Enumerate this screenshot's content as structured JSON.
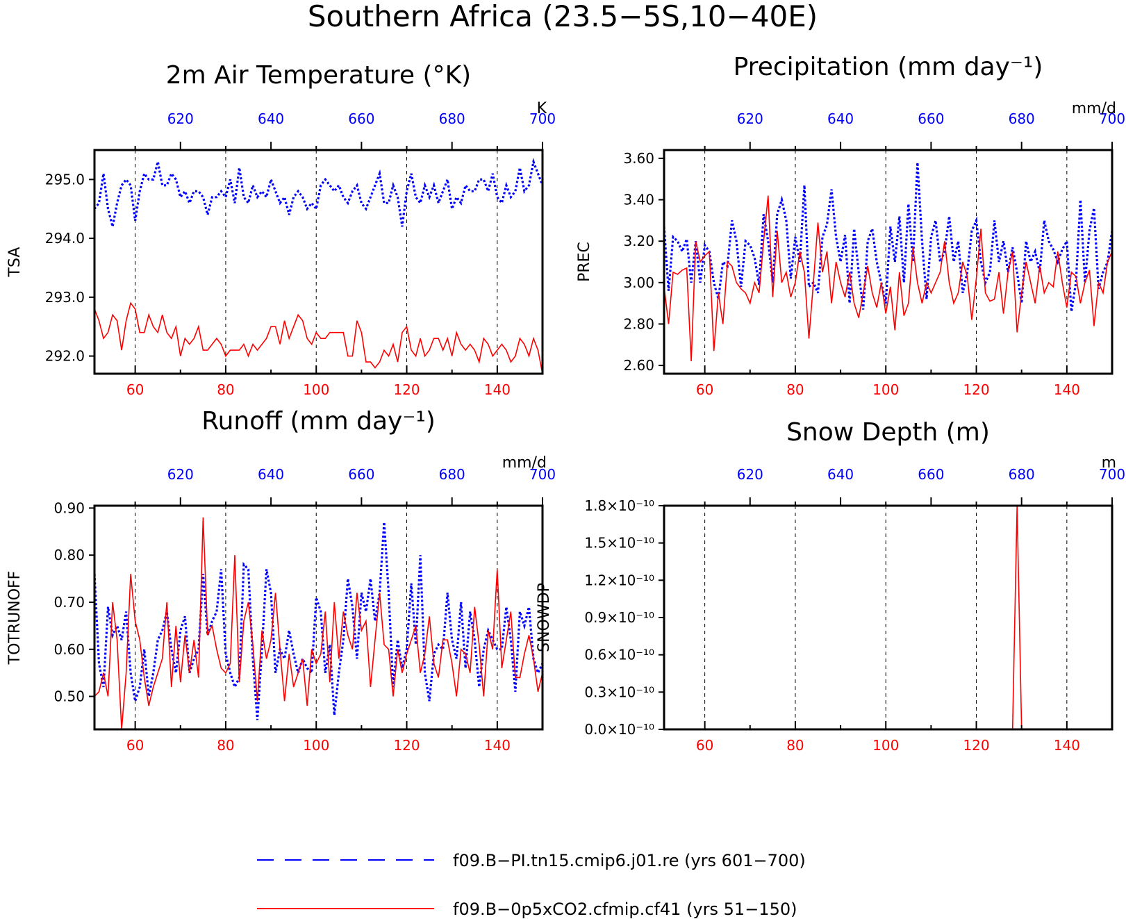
{
  "figure": {
    "title": "Southern Africa (23.5−5S,10−40E)",
    "colors": {
      "control": "#0000ff",
      "experiment": "#ff0000",
      "axis": "#000000"
    }
  },
  "legend": [
    {
      "label": "f09.B−PI.tn15.cmip6.j01.re (yrs 601−700)",
      "color": "#0000ff",
      "style": "dashed"
    },
    {
      "label": "f09.B−0p5xCO2.cfmip.cf41 (yrs 51−150)",
      "color": "#ff0000",
      "style": "solid"
    }
  ],
  "chart_data": [
    {
      "type": "line",
      "title": "2m Air Temperature (°K)",
      "ylabel": "TSA",
      "unit_label": "K",
      "xlim_bottom": [
        51,
        150
      ],
      "xlim_top": [
        601,
        700
      ],
      "ylim": [
        291.7,
        295.5
      ],
      "yticks": [
        292.0,
        293.0,
        294.0,
        295.0
      ],
      "yticklabels": [
        "292.0",
        "293.0",
        "294.0",
        "295.0"
      ],
      "xticks_bottom": [
        60,
        80,
        100,
        120,
        140
      ],
      "xticks_top": [
        620,
        640,
        660,
        680,
        700
      ],
      "grid": "vertical dashed",
      "series": [
        {
          "name": "f09.B−PI.tn15.cmip6.j01.re (yrs 601−700)",
          "axis": "top",
          "color": "#0000ff",
          "style": "dotted",
          "values": [
            294.5,
            294.6,
            295.1,
            294.5,
            294.2,
            294.6,
            294.9,
            295.0,
            294.9,
            294.3,
            294.8,
            295.1,
            295.0,
            295.0,
            295.3,
            294.9,
            294.9,
            295.1,
            295.0,
            294.7,
            294.8,
            294.6,
            294.8,
            294.8,
            294.7,
            294.4,
            294.7,
            294.7,
            294.8,
            294.7,
            295.0,
            294.6,
            295.2,
            294.7,
            294.6,
            294.9,
            294.7,
            294.8,
            294.7,
            295.0,
            294.8,
            294.6,
            294.7,
            294.4,
            294.7,
            294.8,
            294.7,
            294.5,
            294.6,
            294.5,
            294.9,
            295.0,
            294.9,
            294.8,
            294.9,
            294.7,
            294.6,
            294.8,
            294.9,
            294.6,
            294.5,
            294.7,
            294.9,
            295.1,
            294.6,
            294.6,
            294.9,
            294.7,
            294.2,
            294.8,
            295.1,
            294.7,
            294.6,
            294.9,
            294.7,
            294.9,
            294.6,
            294.8,
            295.0,
            294.5,
            294.7,
            294.6,
            294.9,
            294.8,
            294.8,
            295.0,
            295.0,
            294.8,
            295.1,
            294.7,
            294.6,
            294.9,
            294.7,
            294.8,
            295.2,
            294.8,
            294.9,
            295.3,
            295.1,
            294.9
          ]
        },
        {
          "name": "f09.B−0p5xCO2.cfmip.cf41 (yrs 51−150)",
          "axis": "bottom",
          "color": "#ff0000",
          "style": "solid",
          "values": [
            292.8,
            292.6,
            292.3,
            292.4,
            292.7,
            292.6,
            292.1,
            292.6,
            292.9,
            292.8,
            292.4,
            292.4,
            292.7,
            292.5,
            292.4,
            292.7,
            292.4,
            292.3,
            292.5,
            292.0,
            292.3,
            292.2,
            292.3,
            292.5,
            292.1,
            292.1,
            292.2,
            292.3,
            292.2,
            292.0,
            292.1,
            292.1,
            292.1,
            292.2,
            292.0,
            292.2,
            292.1,
            292.2,
            292.3,
            292.5,
            292.5,
            292.2,
            292.6,
            292.3,
            292.5,
            292.7,
            292.6,
            292.3,
            292.2,
            292.4,
            292.3,
            292.3,
            292.4,
            292.4,
            292.4,
            292.4,
            292.0,
            292.0,
            292.6,
            292.4,
            291.9,
            291.9,
            291.8,
            291.9,
            292.1,
            292.0,
            292.2,
            291.9,
            292.4,
            292.5,
            292.1,
            292.0,
            292.3,
            292.0,
            292.1,
            292.3,
            292.3,
            292.1,
            292.3,
            292.0,
            292.4,
            292.2,
            292.1,
            292.2,
            292.1,
            291.9,
            292.3,
            292.2,
            292.0,
            292.1,
            292.2,
            292.1,
            291.9,
            292.0,
            292.3,
            292.2,
            292.0,
            292.3,
            292.1,
            291.7
          ]
        }
      ]
    },
    {
      "type": "line",
      "title": "Precipitation (mm day⁻¹)",
      "ylabel": "PREC",
      "unit_label": "mm/d",
      "xlim_bottom": [
        51,
        150
      ],
      "xlim_top": [
        601,
        700
      ],
      "ylim": [
        2.56,
        3.64
      ],
      "yticks": [
        2.6,
        2.8,
        3.0,
        3.2,
        3.4,
        3.6
      ],
      "yticklabels": [
        "2.60",
        "2.80",
        "3.00",
        "3.20",
        "3.40",
        "3.60"
      ],
      "xticks_bottom": [
        60,
        80,
        100,
        120,
        140
      ],
      "xticks_top": [
        620,
        640,
        660,
        680,
        700
      ],
      "grid": "vertical dashed",
      "series": [
        {
          "name": "f09.B−PI.tn15.cmip6.j01.re (yrs 601−700)",
          "axis": "top",
          "color": "#0000ff",
          "style": "dotted",
          "values": [
            3.27,
            2.96,
            3.22,
            3.2,
            3.15,
            3.21,
            3.0,
            3.2,
            3.0,
            3.18,
            3.15,
            3.0,
            2.92,
            3.1,
            3.08,
            3.3,
            3.2,
            2.98,
            3.2,
            3.18,
            3.12,
            2.99,
            3.33,
            3.2,
            3.0,
            3.33,
            3.4,
            3.3,
            3.02,
            3.22,
            3.1,
            3.47,
            2.98,
            3.0,
            2.95,
            3.22,
            3.28,
            3.45,
            3.22,
            3.1,
            3.23,
            2.9,
            3.26,
            3.05,
            2.87,
            3.2,
            3.26,
            3.1,
            3.0,
            2.9,
            3.27,
            3.1,
            3.32,
            3.0,
            3.38,
            3.1,
            3.58,
            3.2,
            2.92,
            3.22,
            3.3,
            3.1,
            3.15,
            3.32,
            3.1,
            3.2,
            2.95,
            3.05,
            3.25,
            3.3,
            3.1,
            3.0,
            3.05,
            3.3,
            3.1,
            3.2,
            3.05,
            3.17,
            3.05,
            2.9,
            3.2,
            3.1,
            3.15,
            3.05,
            3.3,
            3.2,
            3.16,
            3.1,
            3.16,
            3.2,
            2.86,
            3.0,
            3.4,
            3.0,
            3.25,
            3.36,
            2.97,
            3.05,
            3.1,
            3.25
          ]
        },
        {
          "name": "f09.B−0p5xCO2.cfmip.cf41 (yrs 51−150)",
          "axis": "bottom",
          "color": "#ff0000",
          "style": "solid",
          "values": [
            2.98,
            2.8,
            3.05,
            3.04,
            3.06,
            3.07,
            2.62,
            3.2,
            3.1,
            3.13,
            3.15,
            2.67,
            2.95,
            2.8,
            3.1,
            3.08,
            3.0,
            2.97,
            2.95,
            2.9,
            3.0,
            2.95,
            3.2,
            3.42,
            2.93,
            3.25,
            3.0,
            3.05,
            2.93,
            3.0,
            3.15,
            3.05,
            2.73,
            3.0,
            3.29,
            3.05,
            3.15,
            2.9,
            3.1,
            3.0,
            2.93,
            3.05,
            2.9,
            2.83,
            2.95,
            3.08,
            2.95,
            2.88,
            3.0,
            2.85,
            2.98,
            2.77,
            3.05,
            2.84,
            2.9,
            3.17,
            3.0,
            2.9,
            3.0,
            2.95,
            3.0,
            3.05,
            3.2,
            3.0,
            2.9,
            2.95,
            3.1,
            3.03,
            2.82,
            3.02,
            3.26,
            2.95,
            2.91,
            2.92,
            3.05,
            2.85,
            3.05,
            3.15,
            2.76,
            2.95,
            3.1,
            3.0,
            2.9,
            3.08,
            2.95,
            3.0,
            2.98,
            3.15,
            3.0,
            2.88,
            3.05,
            3.03,
            2.9,
            3.0,
            3.06,
            2.79,
            3.0,
            2.95,
            3.1,
            3.15
          ]
        }
      ]
    },
    {
      "type": "line",
      "title": "Runoff (mm day⁻¹)",
      "ylabel": "TOTRUNOFF",
      "unit_label": "mm/d",
      "xlim_bottom": [
        51,
        150
      ],
      "xlim_top": [
        601,
        700
      ],
      "ylim": [
        0.43,
        0.905
      ],
      "yticks": [
        0.5,
        0.6,
        0.7,
        0.8,
        0.9
      ],
      "yticklabels": [
        "0.50",
        "0.60",
        "0.70",
        "0.80",
        "0.90"
      ],
      "xticks_bottom": [
        60,
        80,
        100,
        120,
        140
      ],
      "xticks_top": [
        620,
        640,
        660,
        680,
        700
      ],
      "grid": "vertical dashed",
      "series": [
        {
          "name": "f09.B−PI.tn15.cmip6.j01.re (yrs 601−700)",
          "axis": "top",
          "color": "#0000ff",
          "style": "dotted",
          "values": [
            0.76,
            0.57,
            0.52,
            0.69,
            0.63,
            0.65,
            0.62,
            0.68,
            0.55,
            0.49,
            0.52,
            0.6,
            0.5,
            0.55,
            0.62,
            0.64,
            0.68,
            0.6,
            0.55,
            0.64,
            0.67,
            0.55,
            0.58,
            0.6,
            0.76,
            0.63,
            0.66,
            0.68,
            0.77,
            0.59,
            0.55,
            0.52,
            0.54,
            0.78,
            0.77,
            0.58,
            0.45,
            0.6,
            0.77,
            0.72,
            0.55,
            0.6,
            0.58,
            0.64,
            0.59,
            0.55,
            0.58,
            0.56,
            0.55,
            0.71,
            0.68,
            0.55,
            0.61,
            0.46,
            0.55,
            0.62,
            0.75,
            0.69,
            0.58,
            0.72,
            0.68,
            0.75,
            0.66,
            0.72,
            0.87,
            0.72,
            0.52,
            0.62,
            0.56,
            0.6,
            0.74,
            0.61,
            0.8,
            0.55,
            0.49,
            0.59,
            0.61,
            0.6,
            0.72,
            0.62,
            0.58,
            0.7,
            0.56,
            0.68,
            0.62,
            0.52,
            0.6,
            0.64,
            0.62,
            0.6,
            0.6,
            0.69,
            0.62,
            0.51,
            0.68,
            0.65,
            0.69,
            0.58,
            0.55,
            0.57
          ]
        },
        {
          "name": "f09.B−0p5xCO2.cfmip.cf41 (yrs 51−150)",
          "axis": "bottom",
          "color": "#ff0000",
          "style": "solid",
          "values": [
            0.5,
            0.51,
            0.55,
            0.5,
            0.7,
            0.62,
            0.43,
            0.55,
            0.76,
            0.66,
            0.62,
            0.54,
            0.48,
            0.52,
            0.55,
            0.58,
            0.7,
            0.52,
            0.65,
            0.53,
            0.63,
            0.55,
            0.62,
            0.54,
            0.88,
            0.63,
            0.65,
            0.6,
            0.56,
            0.55,
            0.57,
            0.8,
            0.53,
            0.66,
            0.7,
            0.61,
            0.49,
            0.64,
            0.58,
            0.62,
            0.72,
            0.6,
            0.49,
            0.59,
            0.52,
            0.55,
            0.58,
            0.48,
            0.6,
            0.57,
            0.59,
            0.68,
            0.53,
            0.7,
            0.58,
            0.68,
            0.63,
            0.6,
            0.72,
            0.64,
            0.66,
            0.52,
            0.62,
            0.72,
            0.61,
            0.6,
            0.5,
            0.6,
            0.55,
            0.59,
            0.62,
            0.65,
            0.55,
            0.59,
            0.67,
            0.57,
            0.54,
            0.62,
            0.62,
            0.57,
            0.5,
            0.6,
            0.59,
            0.55,
            0.69,
            0.61,
            0.5,
            0.64,
            0.6,
            0.77,
            0.56,
            0.62,
            0.68,
            0.54,
            0.54,
            0.59,
            0.63,
            0.58,
            0.51,
            0.55
          ]
        }
      ]
    },
    {
      "type": "line",
      "title": "Snow Depth (m)",
      "ylabel": "SNOWDP",
      "unit_label": "m",
      "xlim_bottom": [
        51,
        150
      ],
      "xlim_top": [
        601,
        700
      ],
      "ylim": [
        0,
        1.8
      ],
      "yticks": [
        0,
        0.3,
        0.6,
        0.9,
        1.2,
        1.5,
        1.8
      ],
      "yticklabels": [
        "0.0×10⁻¹⁰",
        "0.3×10⁻¹⁰",
        "0.6×10⁻¹⁰",
        "0.9×10⁻¹⁰",
        "1.2×10⁻¹⁰",
        "1.5×10⁻¹⁰",
        "1.8×10⁻¹⁰"
      ],
      "xticks_bottom": [
        60,
        80,
        100,
        120,
        140
      ],
      "xticks_top": [
        620,
        640,
        660,
        680,
        700
      ],
      "grid": "vertical dashed",
      "series": [
        {
          "name": "f09.B−0p5xCO2.cfmip.cf41 (yrs 51−150)",
          "axis": "bottom",
          "color": "#ff0000",
          "style": "solid",
          "x": [
            128,
            129,
            130
          ],
          "values": [
            0,
            1.8,
            0
          ]
        }
      ]
    }
  ]
}
